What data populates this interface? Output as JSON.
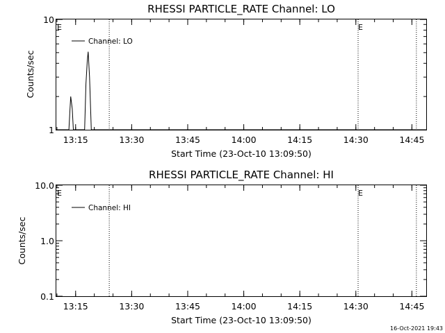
{
  "chart_data": [
    {
      "type": "line",
      "title": "RHESSI PARTICLE_RATE Channel: LO",
      "xlabel": "Start Time (23-Oct-10 13:09:50)",
      "ylabel": "Counts/sec",
      "yscale": "log",
      "ylim": [
        1,
        10
      ],
      "ytick_labels": [
        "1",
        "10"
      ],
      "xtick_labels": [
        "13:15",
        "13:30",
        "13:45",
        "14:00",
        "14:15",
        "14:30",
        "14:45"
      ],
      "xlim_minutes": [
        13.1,
        14.8
      ],
      "legend": {
        "label": "Channel: LO",
        "placement": "top-left"
      },
      "event_markers": [
        {
          "time_hours": 13.12,
          "label": "E"
        },
        {
          "time_hours": 13.4,
          "label": ""
        },
        {
          "time_hours": 14.51,
          "label": "E"
        },
        {
          "time_hours": 14.77,
          "label": ""
        }
      ],
      "series": [
        {
          "x": [
            13.1,
            13.22,
            13.225,
            13.228,
            13.235,
            13.24,
            13.29,
            13.296,
            13.302,
            13.306,
            13.312,
            13.32,
            14.8
          ],
          "y": [
            1,
            1,
            1.55,
            2.0,
            1.55,
            1,
            1,
            2.6,
            4.2,
            5.1,
            3.0,
            1,
            1
          ]
        }
      ]
    },
    {
      "type": "line",
      "title": "RHESSI PARTICLE_RATE Channel: HI",
      "xlabel": "Start Time (23-Oct-10 13:09:50)",
      "ylabel": "Counts/sec",
      "yscale": "log",
      "ylim": [
        0.1,
        10
      ],
      "ytick_labels": [
        "0.1",
        "1.0",
        "10.0"
      ],
      "xtick_labels": [
        "13:15",
        "13:30",
        "13:45",
        "14:00",
        "14:15",
        "14:30",
        "14:45"
      ],
      "legend": {
        "label": "Channel: HI",
        "placement": "top-left"
      },
      "event_markers": [
        {
          "time_hours": 13.12,
          "label": "E"
        },
        {
          "time_hours": 13.4,
          "label": ""
        },
        {
          "time_hours": 14.51,
          "label": "E"
        },
        {
          "time_hours": 14.77,
          "label": ""
        }
      ],
      "series": [
        {
          "x": [],
          "y": []
        }
      ]
    }
  ],
  "footer": {
    "timestamp": "16-Oct-2021 19:43"
  }
}
